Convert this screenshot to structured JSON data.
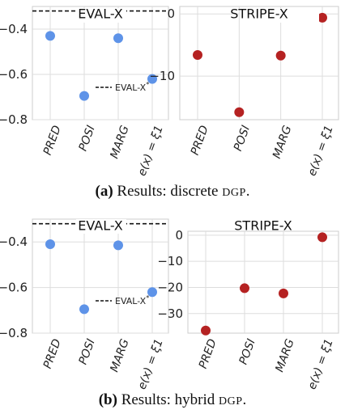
{
  "chart_data": [
    {
      "type": "scatter",
      "title": "EVAL-X",
      "categories": [
        "PRED",
        "POSI",
        "MARG",
        "e(x) = ξ1"
      ],
      "values": [
        -0.43,
        -0.695,
        -0.44,
        -0.62
      ],
      "ylim": [
        -0.8,
        -0.3
      ],
      "yticks": [
        -0.4,
        -0.6,
        -0.8
      ],
      "reference_line": {
        "value": -0.32,
        "style": "dashed",
        "label": "EVAL-X*"
      },
      "color": "#5e93e8",
      "grid": true,
      "legend": "bottom-right"
    },
    {
      "type": "scatter",
      "title": "STRIPE-X",
      "categories": [
        "PRED",
        "POSI",
        "MARG",
        "e(x) = ξ1"
      ],
      "values": [
        -6.6,
        -15.8,
        -6.7,
        -0.6
      ],
      "ylim": [
        -17,
        1.2
      ],
      "yticks": [
        0,
        -10
      ],
      "color": "#b52222",
      "grid": true
    },
    {
      "type": "scatter",
      "title": "EVAL-X",
      "categories": [
        "PRED",
        "POSI",
        "MARG",
        "e(x) = ξ1"
      ],
      "values": [
        -0.41,
        -0.695,
        -0.415,
        -0.62
      ],
      "ylim": [
        -0.8,
        -0.3
      ],
      "yticks": [
        -0.4,
        -0.6,
        -0.8
      ],
      "reference_line": {
        "value": -0.32,
        "style": "dashed",
        "label": "EVAL-X*"
      },
      "color": "#5e93e8",
      "grid": true,
      "legend": "bottom-right"
    },
    {
      "type": "scatter",
      "title": "STRIPE-X",
      "categories": [
        "PRED",
        "POSI",
        "MARG",
        "e(x) = ξ1"
      ],
      "values": [
        -36.5,
        -20.3,
        -22.3,
        -0.8
      ],
      "ylim": [
        -37.5,
        1.5
      ],
      "yticks": [
        0,
        -10,
        -20,
        -30
      ],
      "color": "#b52222",
      "grid": true
    }
  ],
  "captions": {
    "a": {
      "tag": "(a)",
      "text": " Results: discrete ",
      "sc": "DGP",
      "end": "."
    },
    "b": {
      "tag": "(b)",
      "text": " Results: hybrid ",
      "sc": "DGP",
      "end": "."
    }
  }
}
